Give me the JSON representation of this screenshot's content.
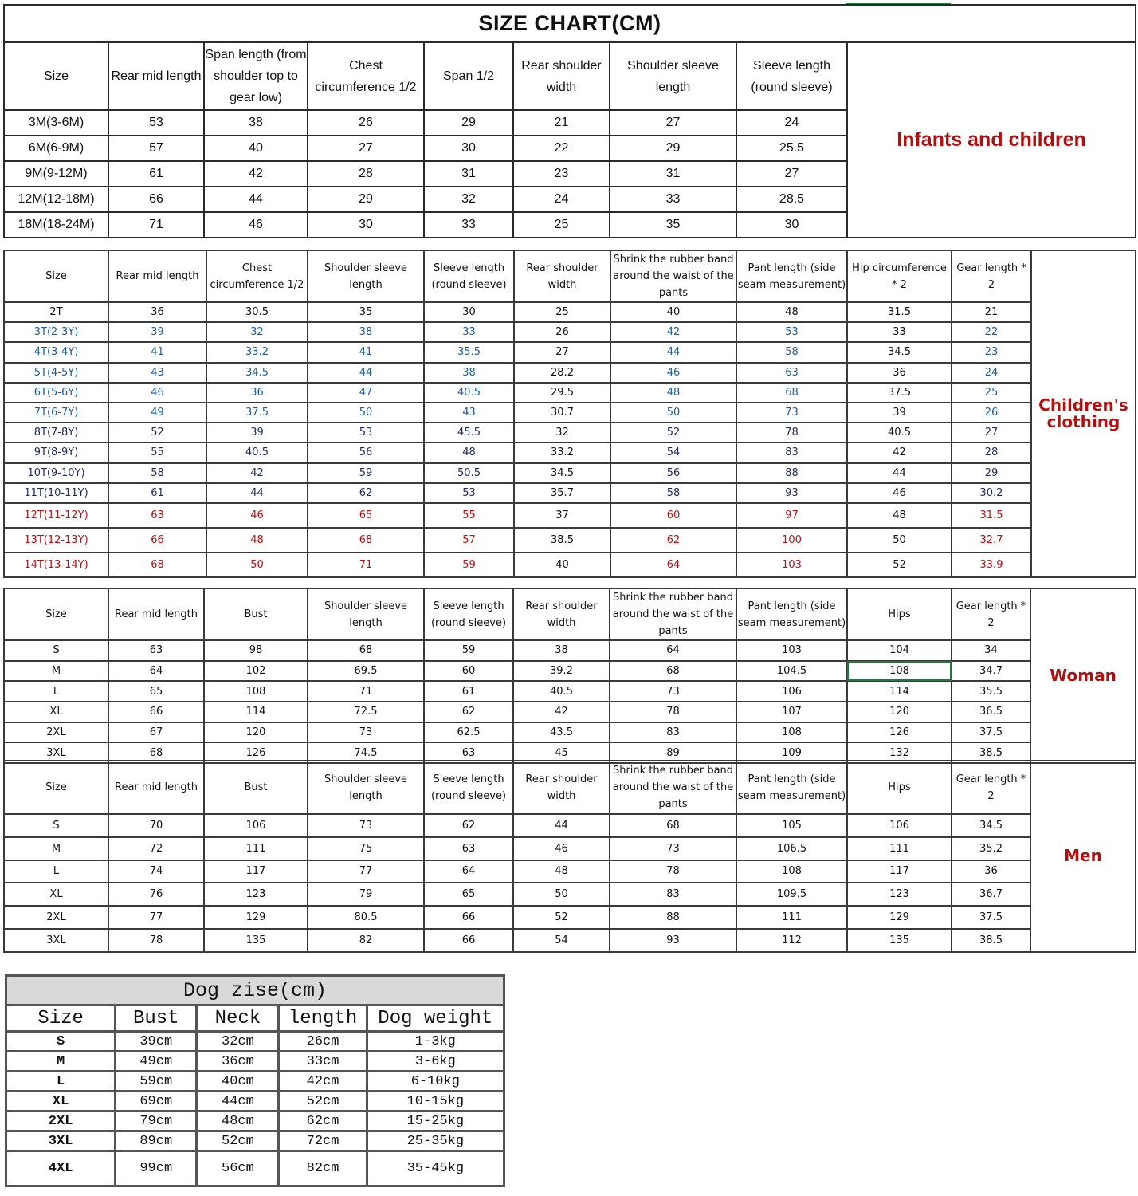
{
  "colors": {
    "label": "#b01010",
    "blue": "#1d5d96",
    "navy": "#1c2b5c",
    "red": "#b01515",
    "selection": "#1e7a3a"
  },
  "infants": {
    "title": "SIZE CHART(CM)",
    "label": "Infants and children",
    "columns": [
      "Size",
      "Rear mid length",
      "Span length (from shoulder top to gear low)",
      "Chest circumference 1/2",
      "Span 1/2",
      "Rear shoulder width",
      "Shoulder sleeve length",
      "Sleeve length (round sleeve)"
    ],
    "rows": [
      [
        "3M(3-6M)",
        "53",
        "38",
        "26",
        "29",
        "21",
        "27",
        "24"
      ],
      [
        "6M(6-9M)",
        "57",
        "40",
        "27",
        "30",
        "22",
        "29",
        "25.5"
      ],
      [
        "9M(9-12M)",
        "61",
        "42",
        "28",
        "31",
        "23",
        "31",
        "27"
      ],
      [
        "12M(12-18M)",
        "66",
        "44",
        "29",
        "32",
        "24",
        "33",
        "28.5"
      ],
      [
        "18M(18-24M)",
        "71",
        "46",
        "30",
        "33",
        "25",
        "35",
        "30"
      ]
    ]
  },
  "children": {
    "label": "Children's clothing",
    "columns": [
      "Size",
      "Rear mid length",
      "Chest circumference 1/2",
      "Shoulder sleeve length",
      "Sleeve length (round sleeve)",
      "Rear shoulder width",
      "Shrink the rubber band around the waist of the pants",
      "Pant length (side seam measurement)",
      "Hip circumference * 2",
      "Gear length * 2"
    ],
    "rows": [
      {
        "tone": "black",
        "cells": [
          "2T",
          "36",
          "30.5",
          "35",
          "30",
          "25",
          "40",
          "48",
          "31.5",
          "21"
        ]
      },
      {
        "tone": "blue",
        "cells": [
          "3T(2-3Y)",
          "39",
          "32",
          "38",
          "33",
          "26",
          "42",
          "53",
          "33",
          "22"
        ]
      },
      {
        "tone": "blue",
        "cells": [
          "4T(3-4Y)",
          "41",
          "33.2",
          "41",
          "35.5",
          "27",
          "44",
          "58",
          "34.5",
          "23"
        ]
      },
      {
        "tone": "blue",
        "cells": [
          "5T(4-5Y)",
          "43",
          "34.5",
          "44",
          "38",
          "28.2",
          "46",
          "63",
          "36",
          "24"
        ]
      },
      {
        "tone": "blue",
        "cells": [
          "6T(5-6Y)",
          "46",
          "36",
          "47",
          "40.5",
          "29.5",
          "48",
          "68",
          "37.5",
          "25"
        ]
      },
      {
        "tone": "blue",
        "cells": [
          "7T(6-7Y)",
          "49",
          "37.5",
          "50",
          "43",
          "30.7",
          "50",
          "73",
          "39",
          "26"
        ]
      },
      {
        "tone": "navy",
        "cells": [
          "8T(7-8Y)",
          "52",
          "39",
          "53",
          "45.5",
          "32",
          "52",
          "78",
          "40.5",
          "27"
        ]
      },
      {
        "tone": "navy",
        "cells": [
          "9T(8-9Y)",
          "55",
          "40.5",
          "56",
          "48",
          "33.2",
          "54",
          "83",
          "42",
          "28"
        ]
      },
      {
        "tone": "navy",
        "cells": [
          "10T(9-10Y)",
          "58",
          "42",
          "59",
          "50.5",
          "34.5",
          "56",
          "88",
          "44",
          "29"
        ]
      },
      {
        "tone": "navy",
        "cells": [
          "11T(10-11Y)",
          "61",
          "44",
          "62",
          "53",
          "35.7",
          "58",
          "93",
          "46",
          "30.2"
        ]
      },
      {
        "tone": "red",
        "cells": [
          "12T(11-12Y)",
          "63",
          "46",
          "65",
          "55",
          "37",
          "60",
          "97",
          "48",
          "31.5"
        ]
      },
      {
        "tone": "red",
        "cells": [
          "13T(12-13Y)",
          "66",
          "48",
          "68",
          "57",
          "38.5",
          "62",
          "100",
          "50",
          "32.7"
        ]
      },
      {
        "tone": "red",
        "cells": [
          "14T(13-14Y)",
          "68",
          "50",
          "71",
          "59",
          "40",
          "64",
          "103",
          "52",
          "33.9"
        ]
      }
    ]
  },
  "woman": {
    "label": "Woman",
    "columns": [
      "Size",
      "Rear mid length",
      "Bust",
      "Shoulder sleeve length",
      "Sleeve length (round sleeve)",
      "Rear shoulder width",
      "Shrink the rubber band around the waist of the pants",
      "Pant length (side seam measurement)",
      "Hips",
      "Gear length * 2"
    ],
    "rows": [
      [
        "S",
        "63",
        "98",
        "68",
        "59",
        "38",
        "64",
        "103",
        "104",
        "34"
      ],
      [
        "M",
        "64",
        "102",
        "69.5",
        "60",
        "39.2",
        "68",
        "104.5",
        "108",
        "34.7"
      ],
      [
        "L",
        "65",
        "108",
        "71",
        "61",
        "40.5",
        "73",
        "106",
        "114",
        "35.5"
      ],
      [
        "XL",
        "66",
        "114",
        "72.5",
        "62",
        "42",
        "78",
        "107",
        "120",
        "36.5"
      ],
      [
        "2XL",
        "67",
        "120",
        "73",
        "62.5",
        "43.5",
        "83",
        "108",
        "126",
        "37.5"
      ],
      [
        "3XL",
        "68",
        "126",
        "74.5",
        "63",
        "45",
        "89",
        "109",
        "132",
        "38.5"
      ]
    ]
  },
  "men": {
    "label": "Men",
    "columns": [
      "Size",
      "Rear mid length",
      "Bust",
      "Shoulder sleeve length",
      "Sleeve length (round sleeve)",
      "Rear shoulder width",
      "Shrink the rubber band around the waist of the pants",
      "Pant length (side seam measurement)",
      "Hips",
      "Gear length * 2"
    ],
    "rows": [
      [
        "S",
        "70",
        "106",
        "73",
        "62",
        "44",
        "68",
        "105",
        "106",
        "34.5"
      ],
      [
        "M",
        "72",
        "111",
        "75",
        "63",
        "46",
        "73",
        "106.5",
        "111",
        "35.2"
      ],
      [
        "L",
        "74",
        "117",
        "77",
        "64",
        "48",
        "78",
        "108",
        "117",
        "36"
      ],
      [
        "XL",
        "76",
        "123",
        "79",
        "65",
        "50",
        "83",
        "109.5",
        "123",
        "36.7"
      ],
      [
        "2XL",
        "77",
        "129",
        "80.5",
        "66",
        "52",
        "88",
        "111",
        "129",
        "37.5"
      ],
      [
        "3XL",
        "78",
        "135",
        "82",
        "66",
        "54",
        "93",
        "112",
        "135",
        "38.5"
      ]
    ]
  },
  "dog": {
    "title": "Dog zise(cm)",
    "columns": [
      "Size",
      "Bust",
      "Neck",
      "length",
      "Dog weight"
    ],
    "rows": [
      [
        "S",
        "39cm",
        "32cm",
        "26cm",
        "1-3kg"
      ],
      [
        "M",
        "49cm",
        "36cm",
        "33cm",
        "3-6kg"
      ],
      [
        "L",
        "59cm",
        "40cm",
        "42cm",
        "6-10kg"
      ],
      [
        "XL",
        "69cm",
        "44cm",
        "52cm",
        "10-15kg"
      ],
      [
        "2XL",
        "79cm",
        "48cm",
        "62cm",
        "15-25kg"
      ],
      [
        "3XL",
        "89cm",
        "52cm",
        "72cm",
        "25-35kg"
      ],
      [
        "4XL",
        "99cm",
        "56cm",
        "82cm",
        "35-45kg"
      ]
    ]
  }
}
